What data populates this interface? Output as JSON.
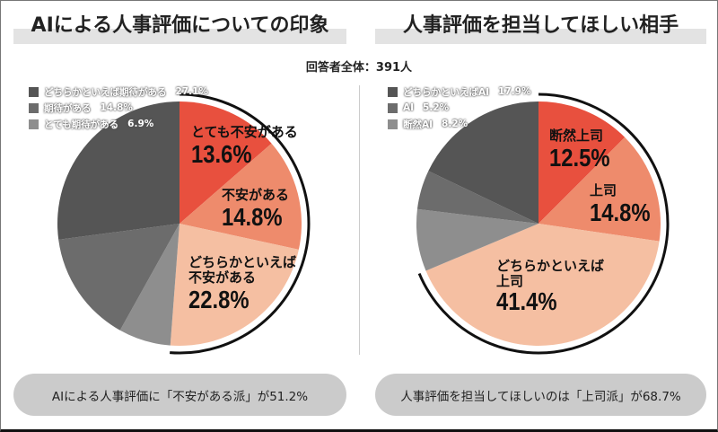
{
  "respondents": "回答者全体：391人",
  "chart_data": [
    {
      "type": "pie",
      "title": "AIによる人事評価についての印象",
      "slices": [
        {
          "label": "とても不安がある",
          "value": 13.6,
          "color": "#e8503e"
        },
        {
          "label": "不安がある",
          "value": 14.8,
          "color": "#ee8b6c"
        },
        {
          "label": "どちらかといえば不安がある",
          "value": 22.8,
          "color": "#f5bfa2"
        },
        {
          "label": "とても期待がある",
          "value": 6.9,
          "color": "#8e8e8e"
        },
        {
          "label": "期待がある",
          "value": 14.8,
          "color": "#6c6c6c"
        },
        {
          "label": "どちらかといえば期待がある",
          "value": 27.1,
          "color": "#555555"
        }
      ],
      "slice_labels": [
        {
          "text": "とても不安がある",
          "pct": "13.6%"
        },
        {
          "text": "不安がある",
          "pct": "14.8%"
        },
        {
          "text": "どちらかといえば\n不安がある",
          "pct": "22.8%"
        }
      ],
      "legend": [
        {
          "label": "どちらかといえば期待がある",
          "pct": "27.1%",
          "color": "#555555"
        },
        {
          "label": "期待がある",
          "pct": "14.8%",
          "color": "#6c6c6c"
        },
        {
          "label": "とても期待がある",
          "pct": "6.9%",
          "color": "#8e8e8e"
        }
      ],
      "summary": "AIによる人事評価に「不安がある派」が51.2%"
    },
    {
      "type": "pie",
      "title": "人事評価を担当してほしい相手",
      "slices": [
        {
          "label": "断然上司",
          "value": 12.5,
          "color": "#e8503e"
        },
        {
          "label": "上司",
          "value": 14.8,
          "color": "#ee8b6c"
        },
        {
          "label": "どちらかといえば上司",
          "value": 41.4,
          "color": "#f5bfa2"
        },
        {
          "label": "断然AI",
          "value": 8.2,
          "color": "#8e8e8e"
        },
        {
          "label": "AI",
          "value": 5.2,
          "color": "#6c6c6c"
        },
        {
          "label": "どちらかといえばAI",
          "value": 17.9,
          "color": "#555555"
        }
      ],
      "slice_labels": [
        {
          "text": "断然上司",
          "pct": "12.5%"
        },
        {
          "text": "上司",
          "pct": "14.8%"
        },
        {
          "text": "どちらかといえば\n上司",
          "pct": "41.4%"
        }
      ],
      "legend": [
        {
          "label": "どちらかといえばAI",
          "pct": "17.9%",
          "color": "#555555"
        },
        {
          "label": "AI",
          "pct": "5.2%",
          "color": "#6c6c6c"
        },
        {
          "label": "断然AI",
          "pct": "8.2%",
          "color": "#8e8e8e"
        }
      ],
      "summary": "人事評価を担当してほしいのは「上司派」が68.7%"
    }
  ]
}
